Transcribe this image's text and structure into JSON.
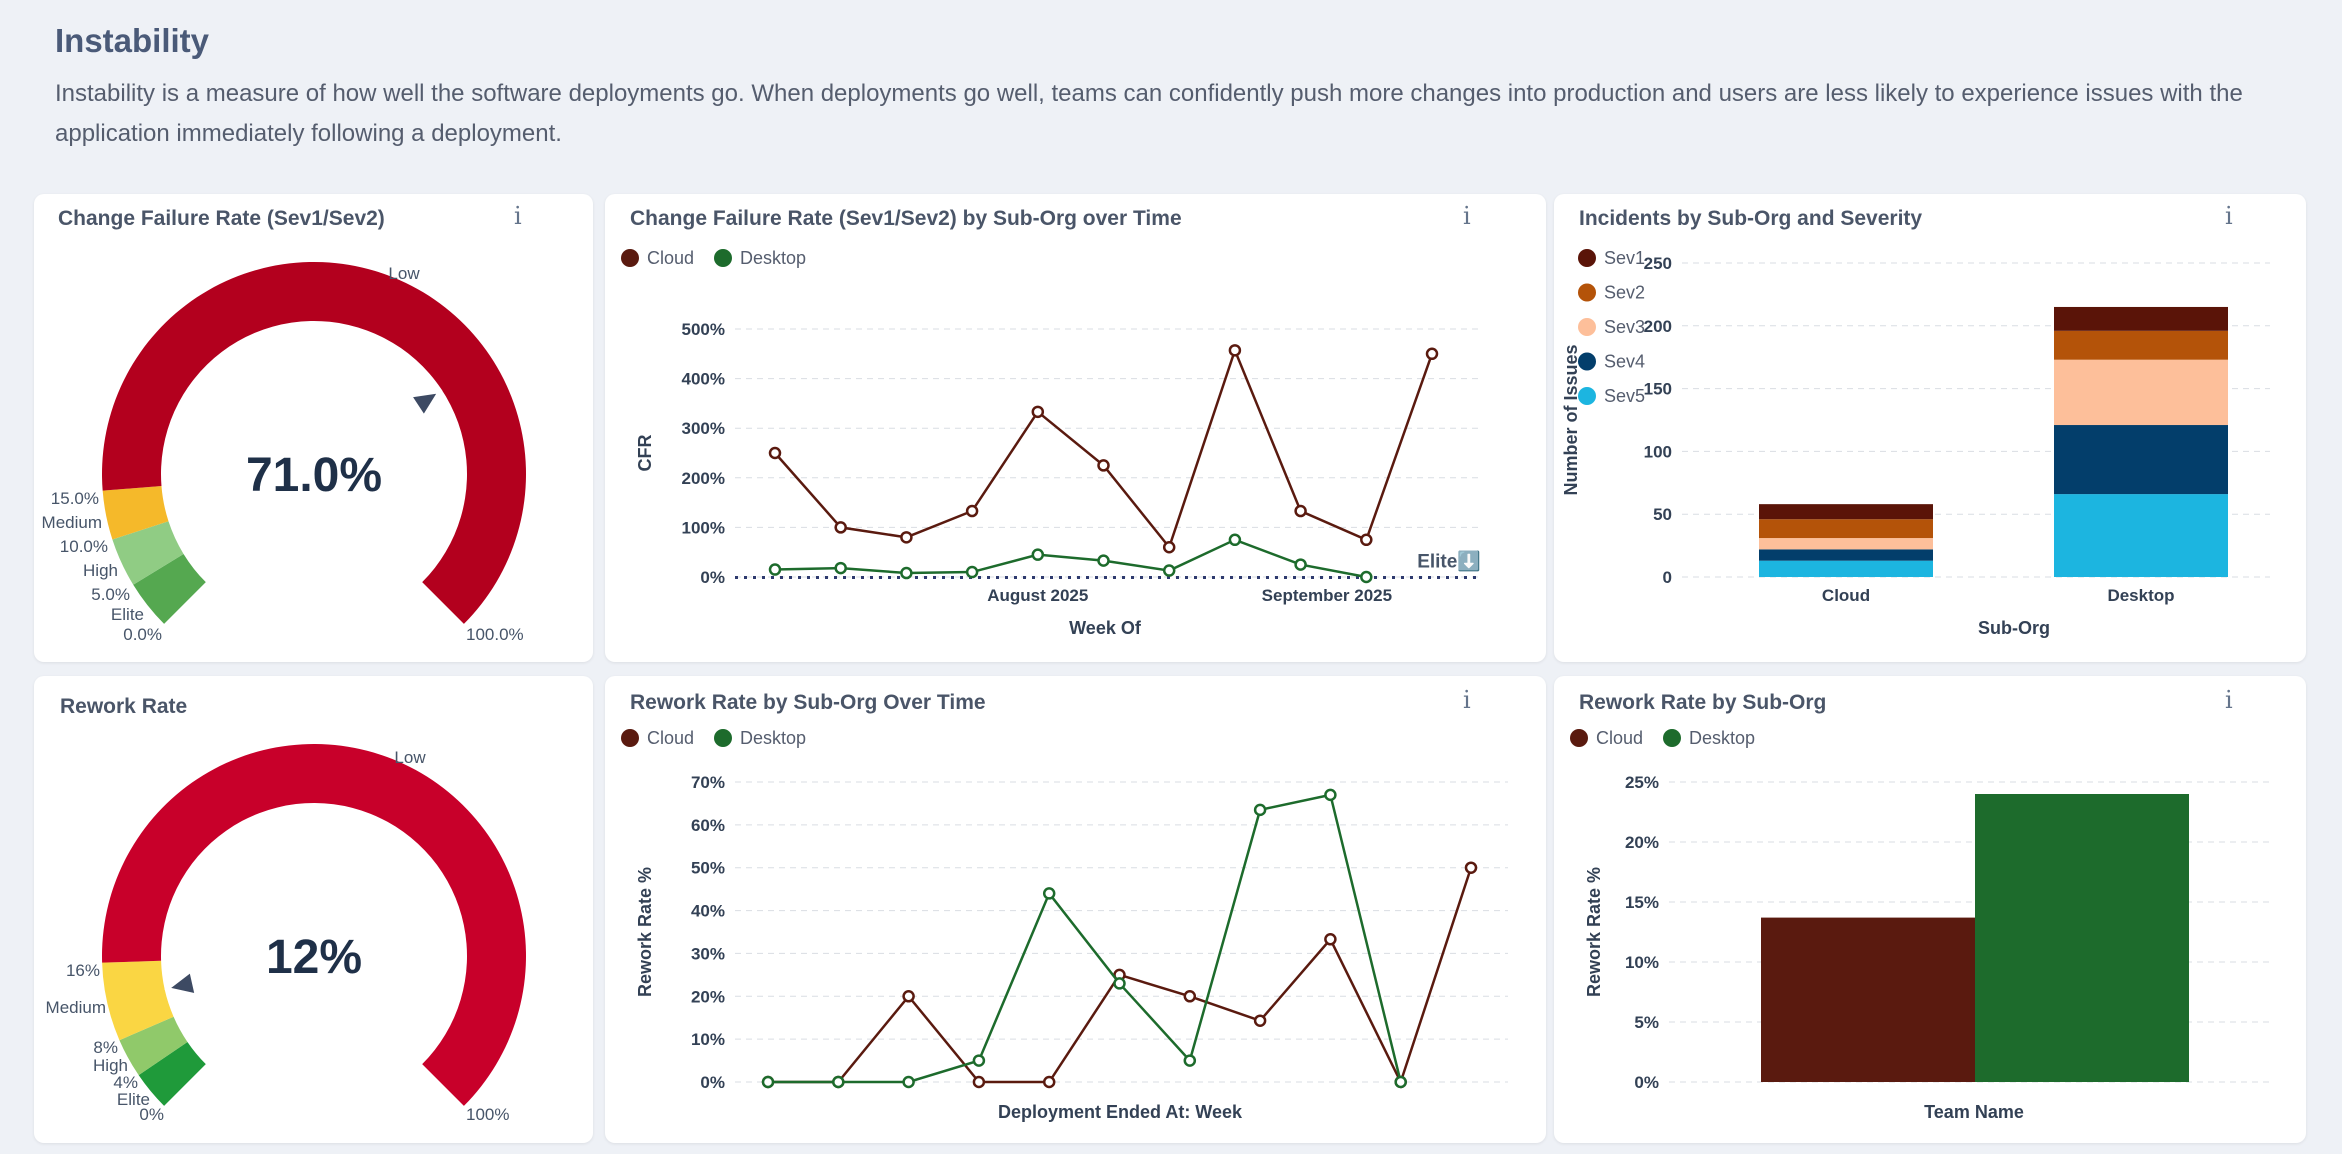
{
  "header": {
    "title": "Instability",
    "description": "Instability is a measure of how well the software deployments go. When deployments go well, teams can confidently push more changes into production and users are less likely to experience issues with the application immediately following a deployment."
  },
  "colors": {
    "cloud": "#5a1a0f",
    "desktop": "#1d6b2c",
    "gauge_low": "#b3001e",
    "gauge_medium": "#f5b92a",
    "gauge_high": "#90cc84",
    "gauge_elite": "#55a850",
    "sev1": "#5a1408",
    "sev2": "#b45309",
    "sev3": "#fdbf9a",
    "sev4": "#033e6b",
    "sev5": "#1cb5e0"
  },
  "cards": {
    "cfr_gauge": {
      "title": "Change Failure Rate (Sev1/Sev2)",
      "info": "i"
    },
    "cfr_time": {
      "title": "Change Failure Rate (Sev1/Sev2) by Sub-Org over Time",
      "info": "i"
    },
    "incidents": {
      "title": "Incidents by Sub-Org and Severity",
      "info": "i"
    },
    "rework_gauge": {
      "title": "Rework Rate",
      "info": "i"
    },
    "rework_time": {
      "title": "Rework Rate by Sub-Org Over Time",
      "info": "i"
    },
    "rework_suborg": {
      "title": "Rework Rate by Sub-Org",
      "info": "i"
    }
  },
  "chart_data": [
    {
      "id": "cfr_gauge",
      "type": "gauge",
      "title": "Change Failure Rate (Sev1/Sev2)",
      "value": 71.0,
      "value_label": "71.0%",
      "range": [
        0,
        100
      ],
      "bands": [
        {
          "name": "Elite",
          "from": 0,
          "to": 5
        },
        {
          "name": "High",
          "from": 5,
          "to": 10
        },
        {
          "name": "Medium",
          "from": 10,
          "to": 15
        },
        {
          "name": "Low",
          "from": 15,
          "to": 100
        }
      ],
      "tick_labels": [
        "0.0%",
        "5.0%",
        "10.0%",
        "15.0%",
        "100.0%"
      ]
    },
    {
      "id": "cfr_time",
      "type": "line",
      "title": "Change Failure Rate (Sev1/Sev2) by Sub-Org over Time",
      "xlabel": "Week Of",
      "ylabel": "CFR",
      "ylim": [
        0,
        500
      ],
      "yticks": [
        0,
        100,
        200,
        300,
        400,
        500
      ],
      "ytick_labels": [
        "0%",
        "100%",
        "200%",
        "300%",
        "400%",
        "500%"
      ],
      "x_labels": [
        {
          "label": "August 2025",
          "pos": 4
        },
        {
          "label": "September 2025",
          "pos": 8.4
        }
      ],
      "reference_line": {
        "label": "Elite⬇️",
        "value": 5
      },
      "series": [
        {
          "name": "Cloud",
          "values": [
            250,
            100,
            80,
            133,
            333,
            225,
            60,
            457,
            133,
            75,
            450
          ]
        },
        {
          "name": "Desktop",
          "values": [
            15,
            18,
            8,
            10,
            45,
            33,
            13,
            75,
            25,
            0
          ]
        }
      ]
    },
    {
      "id": "incidents",
      "type": "bar",
      "stacked": true,
      "title": "Incidents by Sub-Org and Severity",
      "xlabel": "Sub-Org",
      "ylabel": "Number of Issues",
      "categories": [
        "Cloud",
        "Desktop"
      ],
      "ylim": [
        0,
        250
      ],
      "yticks": [
        0,
        50,
        100,
        150,
        200,
        250
      ],
      "series": [
        {
          "name": "Sev5",
          "values": [
            13,
            66
          ]
        },
        {
          "name": "Sev4",
          "values": [
            9,
            55
          ]
        },
        {
          "name": "Sev3",
          "values": [
            9,
            52
          ]
        },
        {
          "name": "Sev2",
          "values": [
            15,
            23
          ]
        },
        {
          "name": "Sev1",
          "values": [
            12,
            19
          ]
        }
      ]
    },
    {
      "id": "rework_gauge",
      "type": "gauge",
      "title": "Rework Rate",
      "value": 12,
      "value_label": "12%",
      "range": [
        0,
        100
      ],
      "bands": [
        {
          "name": "Elite",
          "from": 0,
          "to": 4
        },
        {
          "name": "High",
          "from": 4,
          "to": 8
        },
        {
          "name": "Medium",
          "from": 8,
          "to": 16
        },
        {
          "name": "Low",
          "from": 16,
          "to": 100
        }
      ],
      "tick_labels": [
        "0%",
        "4%",
        "8%",
        "16%",
        "100%"
      ]
    },
    {
      "id": "rework_time",
      "type": "line",
      "title": "Rework Rate by Sub-Org Over Time",
      "xlabel": "Deployment Ended At: Week",
      "ylabel": "Rework Rate %",
      "ylim": [
        0,
        70
      ],
      "yticks": [
        0,
        10,
        20,
        30,
        40,
        50,
        60,
        70
      ],
      "ytick_labels": [
        "0%",
        "10%",
        "20%",
        "30%",
        "40%",
        "50%",
        "60%",
        "70%"
      ],
      "series": [
        {
          "name": "Cloud",
          "values": [
            0,
            0,
            20,
            0,
            0,
            25,
            20,
            14.3,
            33.3,
            0,
            50
          ]
        },
        {
          "name": "Desktop",
          "values": [
            0,
            0,
            0,
            5,
            44,
            23,
            5,
            63.5,
            67,
            0
          ]
        }
      ]
    },
    {
      "id": "rework_suborg",
      "type": "bar",
      "title": "Rework Rate by Sub-Org",
      "xlabel": "Team Name",
      "ylabel": "Rework Rate %",
      "ylim": [
        0,
        25
      ],
      "yticks": [
        0,
        5,
        10,
        15,
        20,
        25
      ],
      "ytick_labels": [
        "0%",
        "5%",
        "10%",
        "15%",
        "20%",
        "25%"
      ],
      "series": [
        {
          "name": "Cloud",
          "values": [
            13.7
          ]
        },
        {
          "name": "Desktop",
          "values": [
            24
          ]
        }
      ]
    }
  ]
}
